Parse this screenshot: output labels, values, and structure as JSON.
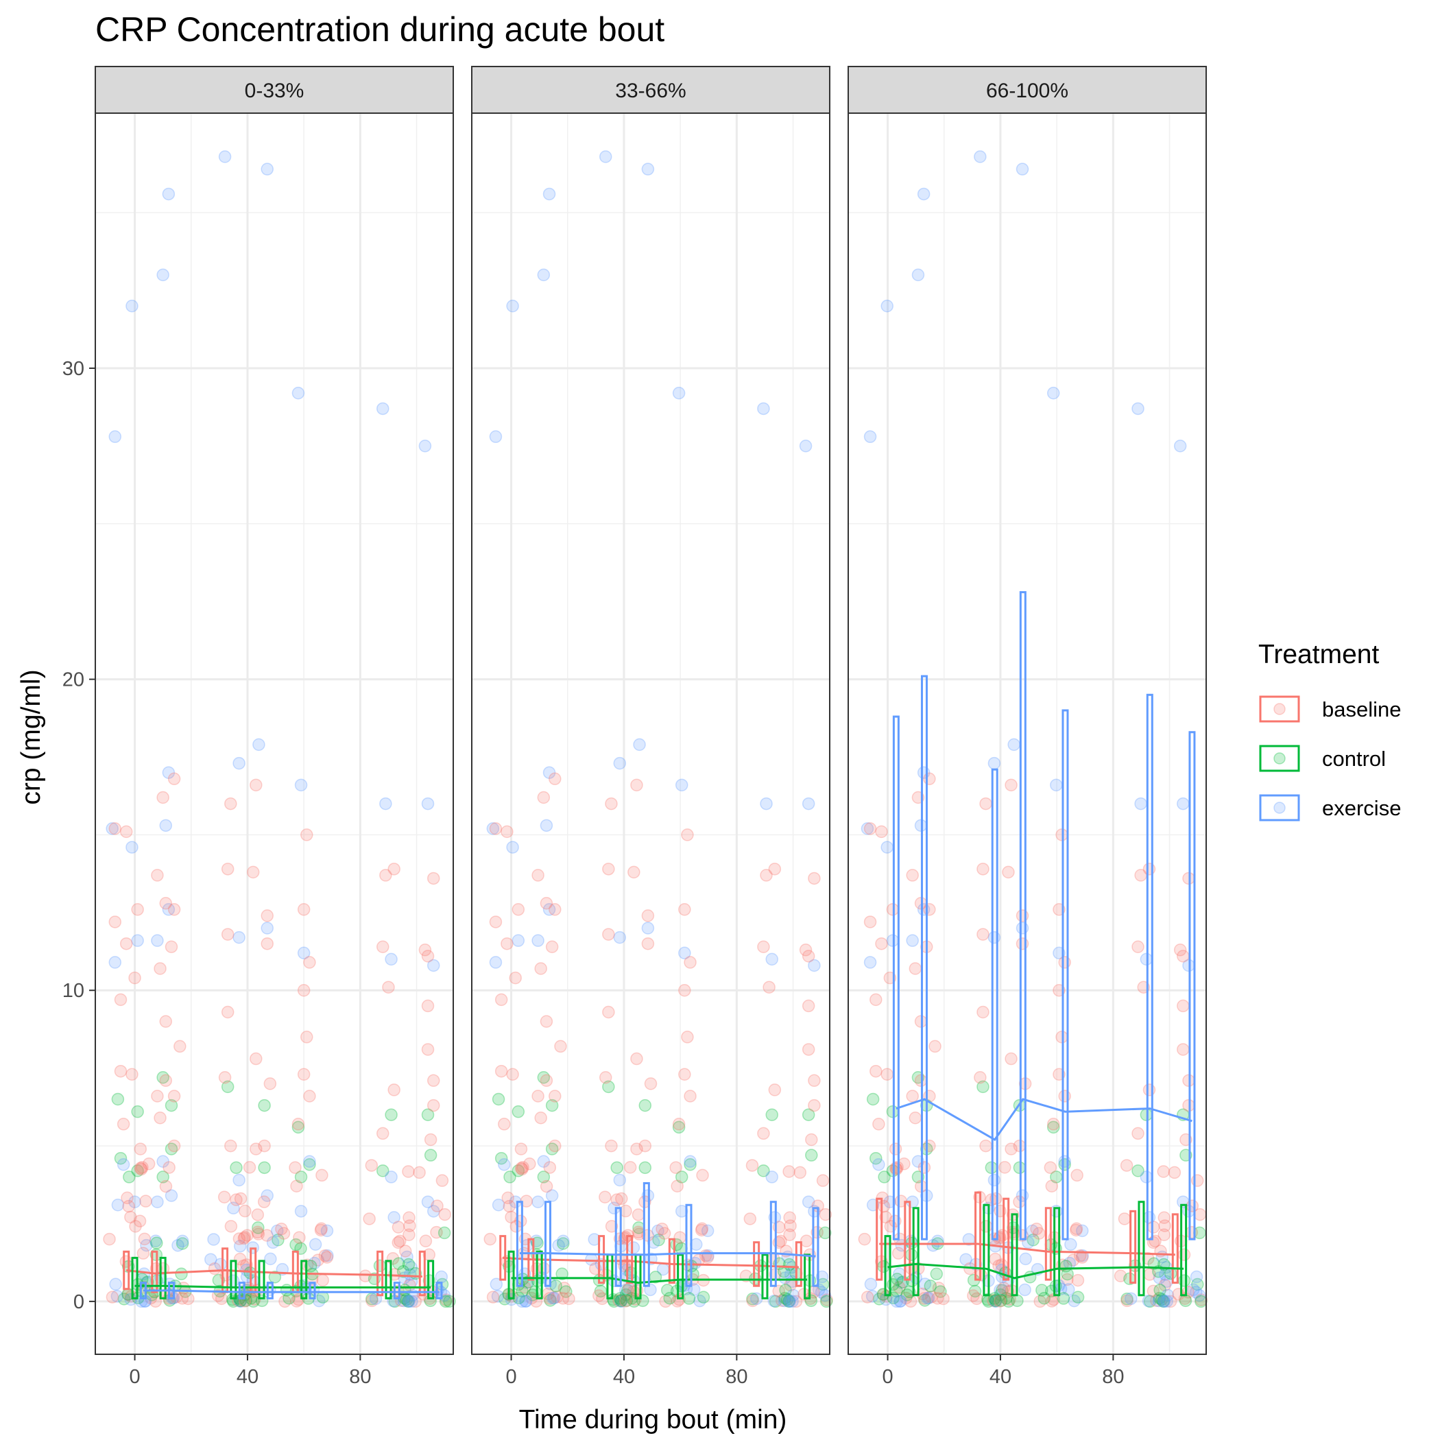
{
  "colors": {
    "baseline": "#F8766D",
    "control": "#00BA38",
    "exercise": "#619CFF"
  },
  "chart_data": {
    "type": "line",
    "title": "CRP Concentration during acute bout",
    "xlabel": "Time during bout (min)",
    "ylabel": "crp (mg/ml)",
    "x_ticks": [
      0,
      40,
      80
    ],
    "x_tick_labels": [
      "0",
      "40",
      "80"
    ],
    "y_ticks": [
      0,
      10,
      20,
      30
    ],
    "y_tick_labels": [
      "0",
      "10",
      "20",
      "30"
    ],
    "xlim": [
      -14,
      113
    ],
    "ylim": [
      -1.7,
      38.2
    ],
    "grid": true,
    "legend": {
      "title": "Treatment",
      "position": "right",
      "entries": [
        "baseline",
        "control",
        "exercise"
      ]
    },
    "time_points": [
      0,
      10,
      35,
      45,
      60,
      90,
      105
    ],
    "facets": [
      {
        "label": "0-33%",
        "series": [
          {
            "name": "baseline",
            "means": [
              1.0,
              0.9,
              1.0,
              0.95,
              0.9,
              0.85,
              0.8
            ],
            "upper": [
              1.6,
              1.6,
              1.7,
              1.7,
              1.6,
              1.6,
              1.6
            ],
            "lower": [
              0.4,
              0.3,
              0.3,
              0.3,
              0.3,
              0.2,
              0.2
            ]
          },
          {
            "name": "control",
            "means": [
              0.5,
              0.5,
              0.45,
              0.45,
              0.45,
              0.45,
              0.45
            ],
            "upper": [
              1.4,
              1.4,
              1.3,
              1.3,
              1.3,
              1.3,
              1.3
            ],
            "lower": [
              0.1,
              0.1,
              0.1,
              0.1,
              0.1,
              0.1,
              0.1
            ]
          },
          {
            "name": "exercise",
            "means": [
              0.35,
              0.35,
              0.3,
              0.3,
              0.3,
              0.3,
              0.3
            ],
            "upper": [
              0.6,
              0.6,
              0.6,
              0.6,
              0.6,
              0.6,
              0.6
            ],
            "lower": [
              0.1,
              0.1,
              0.1,
              0.1,
              0.1,
              0.1,
              0.1
            ]
          }
        ]
      },
      {
        "label": "33-66%",
        "series": [
          {
            "name": "baseline",
            "means": [
              1.4,
              1.35,
              1.3,
              1.3,
              1.2,
              1.15,
              1.1
            ],
            "upper": [
              2.1,
              2.0,
              2.1,
              2.1,
              2.0,
              1.9,
              1.9
            ],
            "lower": [
              0.7,
              0.7,
              0.6,
              0.6,
              0.6,
              0.5,
              0.5
            ]
          },
          {
            "name": "control",
            "means": [
              0.75,
              0.75,
              0.75,
              0.6,
              0.7,
              0.7,
              0.7
            ],
            "upper": [
              1.6,
              1.6,
              1.5,
              1.5,
              1.5,
              1.5,
              1.5
            ],
            "lower": [
              0.1,
              0.1,
              0.1,
              0.1,
              0.1,
              0.1,
              0.1
            ]
          },
          {
            "name": "exercise",
            "means": [
              1.55,
              1.55,
              1.5,
              1.5,
              1.55,
              1.55,
              1.45
            ],
            "upper": [
              3.2,
              3.2,
              3.0,
              3.8,
              3.1,
              3.2,
              3.0
            ],
            "lower": [
              0.5,
              0.5,
              0.5,
              0.5,
              0.5,
              0.5,
              0.5
            ]
          }
        ]
      },
      {
        "label": "66-100%",
        "series": [
          {
            "name": "baseline",
            "means": [
              1.85,
              1.85,
              1.85,
              1.75,
              1.6,
              1.55,
              1.5
            ],
            "upper": [
              3.3,
              3.2,
              3.5,
              3.3,
              3.0,
              2.9,
              2.8
            ],
            "lower": [
              0.7,
              0.7,
              0.7,
              0.7,
              0.7,
              0.6,
              0.6
            ]
          },
          {
            "name": "control",
            "means": [
              1.1,
              1.2,
              1.05,
              0.75,
              1.05,
              1.1,
              1.05
            ],
            "upper": [
              2.1,
              3.0,
              3.1,
              2.8,
              3.0,
              3.2,
              3.1
            ],
            "lower": [
              0.2,
              0.2,
              0.2,
              0.2,
              0.2,
              0.2,
              0.2
            ]
          },
          {
            "name": "exercise",
            "means": [
              6.2,
              6.5,
              5.2,
              6.5,
              6.1,
              6.2,
              5.8
            ],
            "upper": [
              18.8,
              20.1,
              17.1,
              22.8,
              19.0,
              19.5,
              18.3
            ],
            "lower": [
              2.0,
              2.0,
              2.0,
              2.0,
              2.0,
              2.0,
              2.0
            ]
          }
        ]
      }
    ],
    "points": {
      "exercise_high": [
        {
          "x": -7,
          "y": 27.8
        },
        {
          "x": -1,
          "y": 32.0
        },
        {
          "x": 10,
          "y": 33.0
        },
        {
          "x": 12,
          "y": 35.6
        },
        {
          "x": 32,
          "y": 36.8
        },
        {
          "x": 47,
          "y": 36.4
        },
        {
          "x": 58,
          "y": 29.2
        },
        {
          "x": 88,
          "y": 28.7
        },
        {
          "x": 103,
          "y": 27.5
        },
        {
          "x": -8,
          "y": 15.2
        },
        {
          "x": -1,
          "y": 14.6
        },
        {
          "x": 11,
          "y": 15.3
        },
        {
          "x": 12,
          "y": 17.0
        },
        {
          "x": 37,
          "y": 17.3
        },
        {
          "x": 44,
          "y": 17.9
        },
        {
          "x": 59,
          "y": 16.6
        },
        {
          "x": 89,
          "y": 16.0
        },
        {
          "x": 104,
          "y": 16.0
        },
        {
          "x": -7,
          "y": 10.9
        },
        {
          "x": 1,
          "y": 11.6
        },
        {
          "x": 8,
          "y": 11.6
        },
        {
          "x": 12,
          "y": 12.6
        },
        {
          "x": 37,
          "y": 11.7
        },
        {
          "x": 47,
          "y": 12.0
        },
        {
          "x": 60,
          "y": 11.2
        },
        {
          "x": 91,
          "y": 11.0
        },
        {
          "x": 106,
          "y": 10.8
        }
      ],
      "baseline_high": [
        {
          "x": -7,
          "y": 15.2
        },
        {
          "x": -3,
          "y": 15.1
        },
        {
          "x": 10,
          "y": 16.2
        },
        {
          "x": 14,
          "y": 16.8
        },
        {
          "x": 34,
          "y": 16.0
        },
        {
          "x": 43,
          "y": 16.6
        },
        {
          "x": 61,
          "y": 15.0
        },
        {
          "x": 89,
          "y": 13.7
        },
        {
          "x": 92,
          "y": 13.9
        },
        {
          "x": 106,
          "y": 13.6
        },
        {
          "x": -7,
          "y": 12.2
        },
        {
          "x": -3,
          "y": 11.5
        },
        {
          "x": 1,
          "y": 12.6
        },
        {
          "x": 8,
          "y": 13.7
        },
        {
          "x": 11,
          "y": 12.8
        },
        {
          "x": 14,
          "y": 12.6
        },
        {
          "x": 33,
          "y": 13.9
        },
        {
          "x": 42,
          "y": 13.8
        },
        {
          "x": 47,
          "y": 12.4
        },
        {
          "x": 60,
          "y": 12.6
        },
        {
          "x": 88,
          "y": 11.4
        },
        {
          "x": 103,
          "y": 11.3
        },
        {
          "x": 0,
          "y": 10.4
        },
        {
          "x": 9,
          "y": 10.7
        },
        {
          "x": 13,
          "y": 11.4
        },
        {
          "x": 33,
          "y": 11.8
        },
        {
          "x": 47,
          "y": 11.5
        },
        {
          "x": 62,
          "y": 10.9
        },
        {
          "x": 90,
          "y": 10.1
        },
        {
          "x": 104,
          "y": 11.1
        },
        {
          "x": -5,
          "y": 9.7
        },
        {
          "x": 11,
          "y": 9.0
        },
        {
          "x": 33,
          "y": 9.3
        },
        {
          "x": 60,
          "y": 10.0
        },
        {
          "x": 104,
          "y": 9.5
        }
      ],
      "control_mid": [
        {
          "x": -6,
          "y": 6.5
        },
        {
          "x": 1,
          "y": 6.1
        },
        {
          "x": 10,
          "y": 7.2
        },
        {
          "x": 13,
          "y": 6.3
        },
        {
          "x": 33,
          "y": 6.9
        },
        {
          "x": 46,
          "y": 6.3
        },
        {
          "x": 58,
          "y": 5.6
        },
        {
          "x": 91,
          "y": 6.0
        },
        {
          "x": 104,
          "y": 6.0
        },
        {
          "x": -5,
          "y": 4.6
        },
        {
          "x": -2,
          "y": 4.0
        },
        {
          "x": 1,
          "y": 4.2
        },
        {
          "x": 10,
          "y": 4.0
        },
        {
          "x": 13,
          "y": 4.9
        },
        {
          "x": 36,
          "y": 4.3
        },
        {
          "x": 46,
          "y": 4.3
        },
        {
          "x": 59,
          "y": 4.0
        },
        {
          "x": 62,
          "y": 4.4
        },
        {
          "x": 88,
          "y": 4.2
        },
        {
          "x": 105,
          "y": 4.7
        }
      ],
      "baseline_mid": [
        {
          "x": -5,
          "y": 7.4
        },
        {
          "x": -1,
          "y": 7.3
        },
        {
          "x": 8,
          "y": 6.6
        },
        {
          "x": 11,
          "y": 7.1
        },
        {
          "x": 14,
          "y": 6.6
        },
        {
          "x": 16,
          "y": 8.2
        },
        {
          "x": 32,
          "y": 7.2
        },
        {
          "x": 43,
          "y": 7.8
        },
        {
          "x": 48,
          "y": 7.0
        },
        {
          "x": 60,
          "y": 7.3
        },
        {
          "x": 61,
          "y": 8.5
        },
        {
          "x": 92,
          "y": 6.8
        },
        {
          "x": 104,
          "y": 8.1
        },
        {
          "x": 106,
          "y": 7.1
        },
        {
          "x": -4,
          "y": 5.7
        },
        {
          "x": 2,
          "y": 4.9
        },
        {
          "x": 9,
          "y": 5.9
        },
        {
          "x": 14,
          "y": 5.0
        },
        {
          "x": 34,
          "y": 5.0
        },
        {
          "x": 43,
          "y": 4.9
        },
        {
          "x": 46,
          "y": 5.0
        },
        {
          "x": 58,
          "y": 5.7
        },
        {
          "x": 62,
          "y": 6.6
        },
        {
          "x": 88,
          "y": 5.4
        },
        {
          "x": 105,
          "y": 5.2
        },
        {
          "x": 106,
          "y": 6.3
        }
      ],
      "exercise_mid": [
        {
          "x": -6,
          "y": 3.1
        },
        {
          "x": 0,
          "y": 3.2
        },
        {
          "x": 8,
          "y": 3.2
        },
        {
          "x": 13,
          "y": 3.4
        },
        {
          "x": 35,
          "y": 3.0
        },
        {
          "x": 47,
          "y": 3.4
        },
        {
          "x": 59,
          "y": 2.9
        },
        {
          "x": 91,
          "y": 4.0
        },
        {
          "x": 104,
          "y": 3.2
        },
        {
          "x": -4,
          "y": 4.4
        },
        {
          "x": 10,
          "y": 4.5
        },
        {
          "x": 37,
          "y": 3.9
        },
        {
          "x": 62,
          "y": 4.5
        },
        {
          "x": 92,
          "y": 2.7
        },
        {
          "x": 106,
          "y": 2.9
        }
      ]
    }
  }
}
